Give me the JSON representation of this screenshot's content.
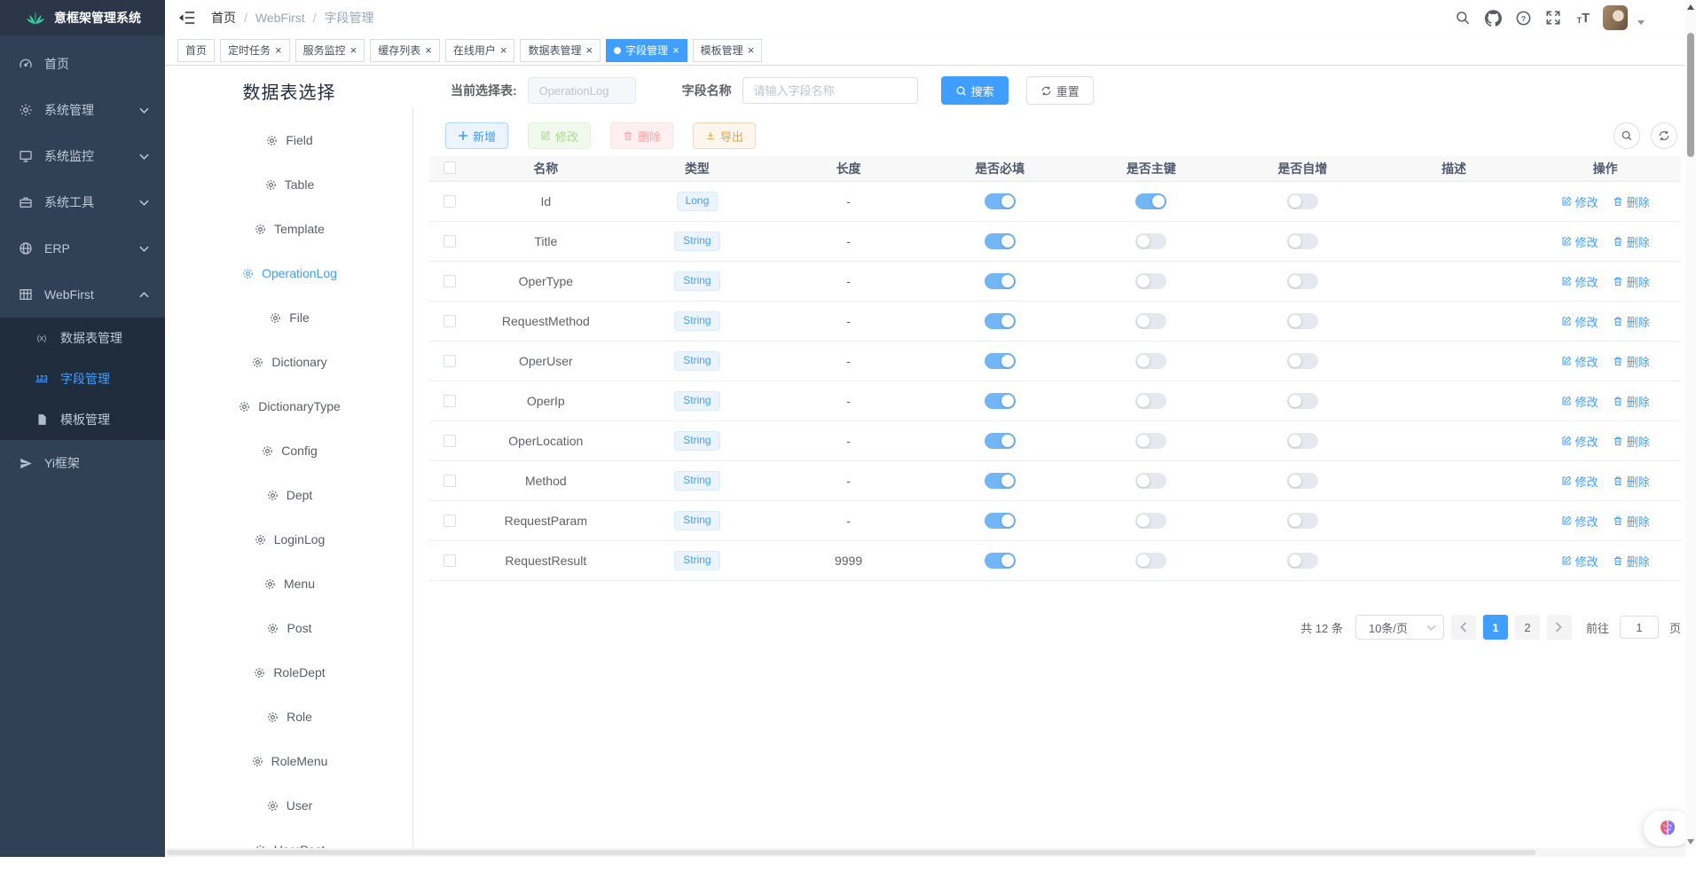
{
  "app": {
    "title": "意框架管理系统"
  },
  "header": {
    "breadcrumb": [
      "首页",
      "WebFirst",
      "字段管理"
    ],
    "separator": "/"
  },
  "sidebar": {
    "items": [
      {
        "label": "首页",
        "icon": "dashboard-icon"
      },
      {
        "label": "系统管理",
        "icon": "gear-icon",
        "chevron": "down"
      },
      {
        "label": "系统监控",
        "icon": "monitor-icon",
        "chevron": "down"
      },
      {
        "label": "系统工具",
        "icon": "toolbox-icon",
        "chevron": "down"
      },
      {
        "label": "ERP",
        "icon": "globe-icon",
        "chevron": "down"
      },
      {
        "label": "WebFirst",
        "icon": "table-icon",
        "chevron": "up",
        "children": [
          {
            "label": "数据表管理",
            "icon": "code-icon"
          },
          {
            "label": "字段管理",
            "icon": "number-icon",
            "active": true
          },
          {
            "label": "模板管理",
            "icon": "document-icon"
          }
        ]
      },
      {
        "label": "Yi框架",
        "icon": "send-icon"
      }
    ]
  },
  "tabs": [
    {
      "label": "首页",
      "closable": false
    },
    {
      "label": "定时任务",
      "closable": true
    },
    {
      "label": "服务监控",
      "closable": true
    },
    {
      "label": "缓存列表",
      "closable": true
    },
    {
      "label": "在线用户",
      "closable": true
    },
    {
      "label": "数据表管理",
      "closable": true
    },
    {
      "label": "字段管理",
      "closable": true,
      "active": true
    },
    {
      "label": "模板管理",
      "closable": true
    }
  ],
  "panel": {
    "title": "数据表选择",
    "tables": [
      {
        "label": "Field"
      },
      {
        "label": "Table"
      },
      {
        "label": "Template"
      },
      {
        "label": "OperationLog",
        "active": true
      },
      {
        "label": "File"
      },
      {
        "label": "Dictionary"
      },
      {
        "label": "DictionaryType"
      },
      {
        "label": "Config"
      },
      {
        "label": "Dept"
      },
      {
        "label": "LoginLog"
      },
      {
        "label": "Menu"
      },
      {
        "label": "Post"
      },
      {
        "label": "RoleDept"
      },
      {
        "label": "Role"
      },
      {
        "label": "RoleMenu"
      },
      {
        "label": "User"
      },
      {
        "label": "UserPost"
      }
    ]
  },
  "filter": {
    "table_label": "当前选择表:",
    "table_value": "OperationLog",
    "field_label": "字段名称",
    "field_placeholder": "请输入字段名称",
    "search_label": "搜索",
    "reset_label": "重置"
  },
  "toolbar": {
    "add_label": "新增",
    "edit_label": "修改",
    "delete_label": "删除",
    "export_label": "导出"
  },
  "table": {
    "columns": [
      "名称",
      "类型",
      "长度",
      "是否必填",
      "是否主键",
      "是否自增",
      "描述",
      "操作"
    ],
    "op_edit": "修改",
    "op_delete": "删除",
    "rows": [
      {
        "name": "Id",
        "type": "Long",
        "length": "-",
        "required": true,
        "primary": true,
        "auto": false,
        "desc": ""
      },
      {
        "name": "Title",
        "type": "String",
        "length": "-",
        "required": true,
        "primary": false,
        "auto": false,
        "desc": ""
      },
      {
        "name": "OperType",
        "type": "String",
        "length": "-",
        "required": true,
        "primary": false,
        "auto": false,
        "desc": ""
      },
      {
        "name": "RequestMethod",
        "type": "String",
        "length": "-",
        "required": true,
        "primary": false,
        "auto": false,
        "desc": ""
      },
      {
        "name": "OperUser",
        "type": "String",
        "length": "-",
        "required": true,
        "primary": false,
        "auto": false,
        "desc": ""
      },
      {
        "name": "OperIp",
        "type": "String",
        "length": "-",
        "required": true,
        "primary": false,
        "auto": false,
        "desc": ""
      },
      {
        "name": "OperLocation",
        "type": "String",
        "length": "-",
        "required": true,
        "primary": false,
        "auto": false,
        "desc": ""
      },
      {
        "name": "Method",
        "type": "String",
        "length": "-",
        "required": true,
        "primary": false,
        "auto": false,
        "desc": ""
      },
      {
        "name": "RequestParam",
        "type": "String",
        "length": "-",
        "required": true,
        "primary": false,
        "auto": false,
        "desc": ""
      },
      {
        "name": "RequestResult",
        "type": "String",
        "length": "9999",
        "required": true,
        "primary": false,
        "auto": false,
        "desc": ""
      }
    ]
  },
  "pagination": {
    "total_label": "共 12 条",
    "page_size": "10条/页",
    "pages": [
      "1",
      "2"
    ],
    "current": "1",
    "goto_label": "前往",
    "goto_value": "1",
    "goto_suffix": "页"
  },
  "colors": {
    "accent": "#409eff",
    "sidebar_bg": "#304156",
    "submenu_bg": "#1f2d3d",
    "switch_on": "#72b6f5"
  }
}
